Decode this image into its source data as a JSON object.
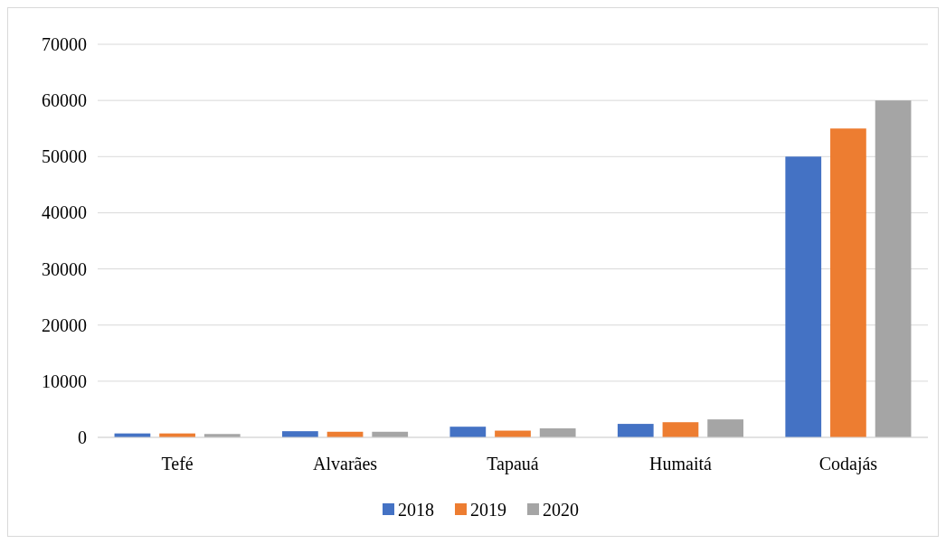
{
  "chart_data": {
    "type": "bar",
    "categories": [
      "Tefé",
      "Alvarães",
      "Tapauá",
      "Humaitá",
      "Codajás"
    ],
    "series": [
      {
        "name": "2018",
        "color": "#4472c4",
        "values": [
          700,
          1100,
          1900,
          2400,
          50000
        ]
      },
      {
        "name": "2019",
        "color": "#ed7d31",
        "values": [
          700,
          1000,
          1200,
          2700,
          55000
        ]
      },
      {
        "name": "2020",
        "color": "#a5a5a5",
        "values": [
          600,
          1000,
          1600,
          3200,
          60000
        ]
      }
    ],
    "ylim": [
      0,
      70000
    ],
    "yticks": [
      0,
      10000,
      20000,
      30000,
      40000,
      50000,
      60000,
      70000
    ],
    "grid": "y",
    "legend": "bottom"
  }
}
